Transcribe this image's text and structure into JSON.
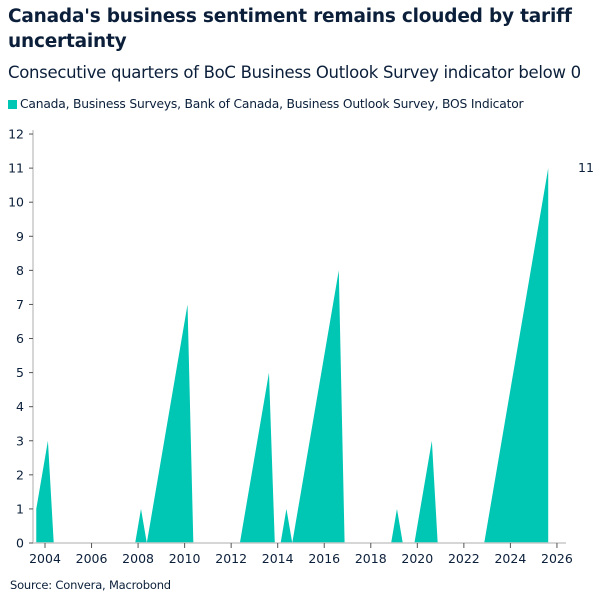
{
  "title": "Canada's business sentiment remains clouded by tariff uncertainty",
  "subtitle": "Consecutive quarters of BoC Business Outlook Survey indicator below 0",
  "source": "Source: Convera, Macrobond",
  "chart_data": {
    "type": "area",
    "title": "Canada's business sentiment remains clouded by tariff uncertainty",
    "subtitle": "Consecutive quarters of BoC Business Outlook Survey indicator below 0",
    "xlabel": "",
    "ylabel": "",
    "xlim": [
      2003.5,
      2026.5
    ],
    "ylim": [
      0,
      12
    ],
    "x_ticks": [
      "2004",
      "2006",
      "2008",
      "2010",
      "2012",
      "2014",
      "2016",
      "2018",
      "2020",
      "2022",
      "2024",
      "2026"
    ],
    "y_ticks": [
      "0",
      "1",
      "2",
      "3",
      "4",
      "5",
      "6",
      "7",
      "8",
      "9",
      "10",
      "11",
      "12"
    ],
    "grid": false,
    "legend_position": "top-left",
    "color": "#00c6b4",
    "last_value_label": "11",
    "series": [
      {
        "name": "Canada, Business Surveys, Bank of Canada, Business Outlook Survey, BOS Indicator",
        "start_quarter": "2003Q3",
        "frequency": "quarterly",
        "values": [
          1,
          2,
          3,
          0,
          0,
          0,
          0,
          0,
          0,
          0,
          0,
          0,
          0,
          0,
          0,
          0,
          0,
          0,
          1,
          0,
          1,
          2,
          3,
          4,
          5,
          6,
          7,
          0,
          0,
          0,
          0,
          0,
          0,
          0,
          0,
          0,
          1,
          2,
          3,
          4,
          5,
          0,
          0,
          1,
          0,
          1,
          2,
          3,
          4,
          5,
          6,
          7,
          8,
          0,
          0,
          0,
          0,
          0,
          0,
          0,
          0,
          0,
          1,
          0,
          0,
          0,
          1,
          2,
          3,
          0,
          0,
          0,
          0,
          0,
          0,
          0,
          0,
          0,
          1,
          2,
          3,
          4,
          5,
          6,
          7,
          8,
          9,
          10,
          11
        ]
      }
    ]
  }
}
